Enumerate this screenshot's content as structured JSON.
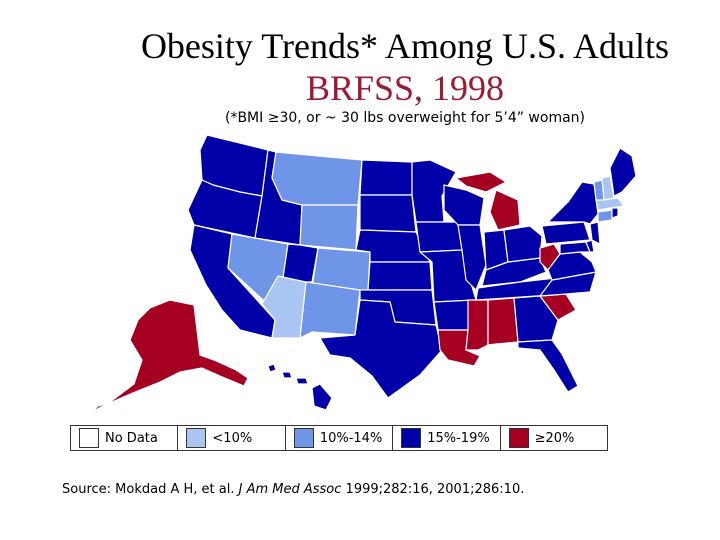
{
  "title": {
    "line1": "Obesity Trends* Among U.S. Adults",
    "line2": "BRFSS, 1998"
  },
  "subtitle": "(*BMI ≥30, or ~ 30 lbs overweight for 5’4” woman)",
  "colors": {
    "no_data": "#ffffff",
    "lt10": "#a9c6f2",
    "p10_14": "#6f95e8",
    "p15_19": "#0000a8",
    "gte20": "#a50021",
    "border": "#ffffff",
    "title_accent": "#9b1b30"
  },
  "legend": [
    {
      "label": "No Data",
      "color_key": "no_data"
    },
    {
      "label": "<10%",
      "color_key": "lt10"
    },
    {
      "label": "10%-14%",
      "color_key": "p10_14"
    },
    {
      "label": "15%-19%",
      "color_key": "p15_19"
    },
    {
      "label": "≥20%",
      "color_key": "gte20"
    }
  ],
  "state_categories": {
    "WA": "p15_19",
    "OR": "p15_19",
    "CA": "p15_19",
    "ID": "p15_19",
    "NV": "p10_14",
    "MT": "p10_14",
    "WY": "p10_14",
    "UT": "p15_19",
    "AZ": "lt10",
    "CO": "p10_14",
    "NM": "p10_14",
    "ND": "p15_19",
    "SD": "p15_19",
    "NE": "p15_19",
    "KS": "p15_19",
    "OK": "p15_19",
    "TX": "p15_19",
    "MN": "p15_19",
    "IA": "p15_19",
    "MO": "p15_19",
    "AR": "p15_19",
    "LA": "gte20",
    "WI": "p15_19",
    "IL": "p15_19",
    "MS": "gte20",
    "MI": "gte20",
    "IN": "p15_19",
    "KY": "p15_19",
    "TN": "p15_19",
    "AL": "gte20",
    "OH": "p15_19",
    "WV": "gte20",
    "GA": "p15_19",
    "FL": "p15_19",
    "SC": "gte20",
    "NC": "p15_19",
    "VA": "p15_19",
    "PA": "p15_19",
    "NY": "p15_19",
    "ME": "p15_19",
    "VT": "p10_14",
    "NH": "lt10",
    "MA": "lt10",
    "CT": "p10_14",
    "RI": "p15_19",
    "NJ": "p15_19",
    "DE": "p15_19",
    "MD": "p15_19",
    "AK": "gte20",
    "HI": "p15_19"
  },
  "source": {
    "prefix": "Source: Mokdad A H, et al.",
    "journal": "J Am Med Assoc",
    "suffix": "1999;282:16, 2001;286:10."
  }
}
